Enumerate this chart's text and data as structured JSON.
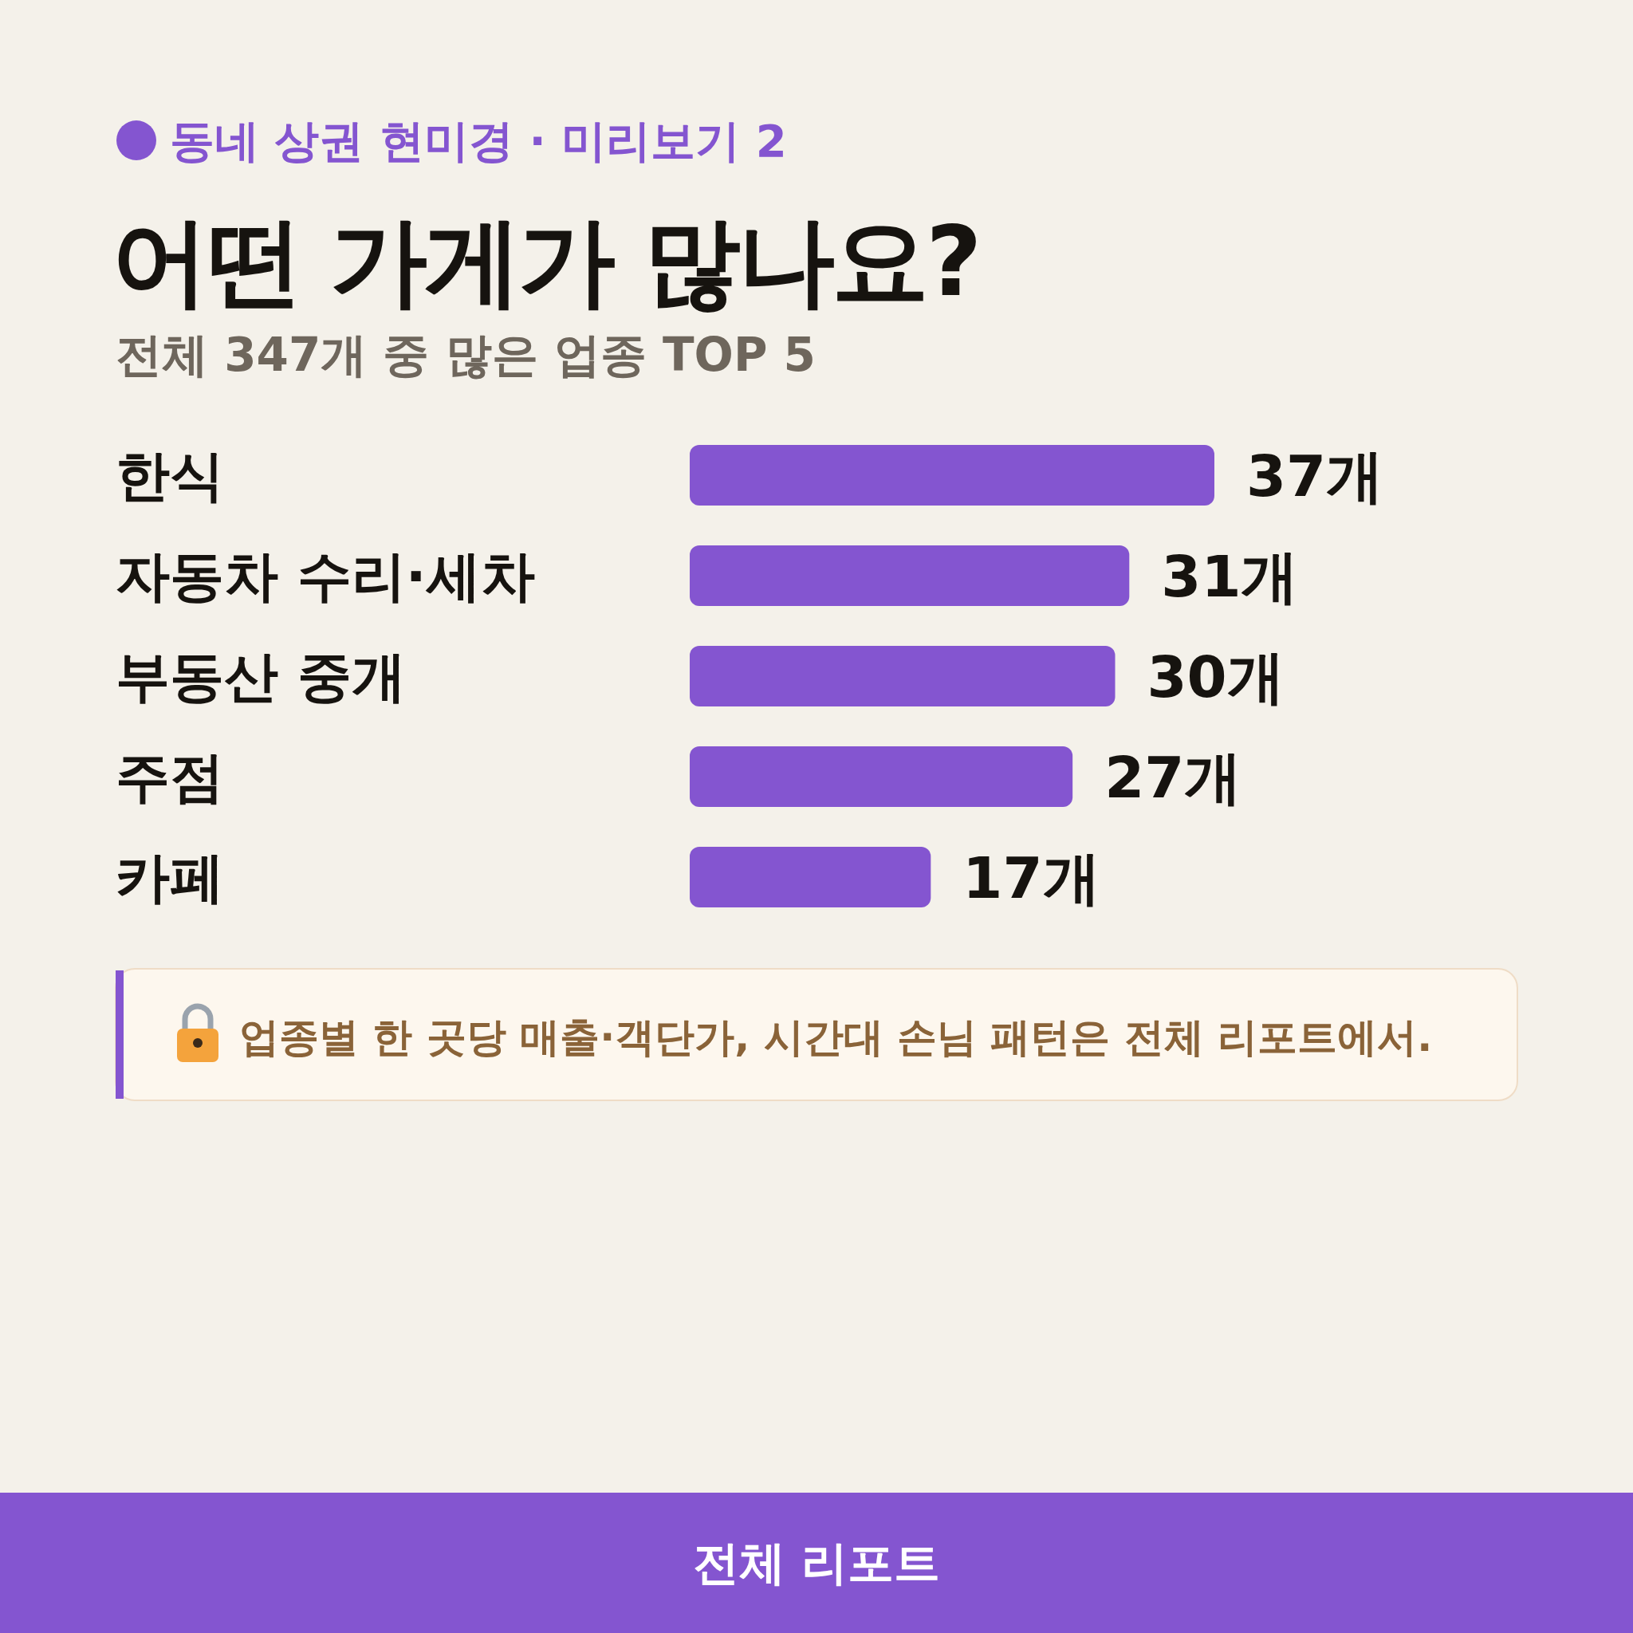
{
  "chart_data": {
    "type": "bar",
    "orientation": "horizontal",
    "title": "어떤 가게가 많나요?",
    "subtitle": "전체 347개 중 많은 업종 TOP 5",
    "categories": [
      "한식",
      "자동차 수리·세차",
      "부동산 중개",
      "주점",
      "카페"
    ],
    "values": [
      37,
      31,
      30,
      27,
      17
    ],
    "value_labels": [
      "37개",
      "31개",
      "30개",
      "27개",
      "17개"
    ],
    "color": "#8455d0",
    "annotations": [
      "동네 상권 현미경 · 미리보기 2",
      "업종별 한 곳당 매출·객단가, 시간대 손님 패턴은 전체 리포트에서.",
      "전체 리포트"
    ]
  }
}
